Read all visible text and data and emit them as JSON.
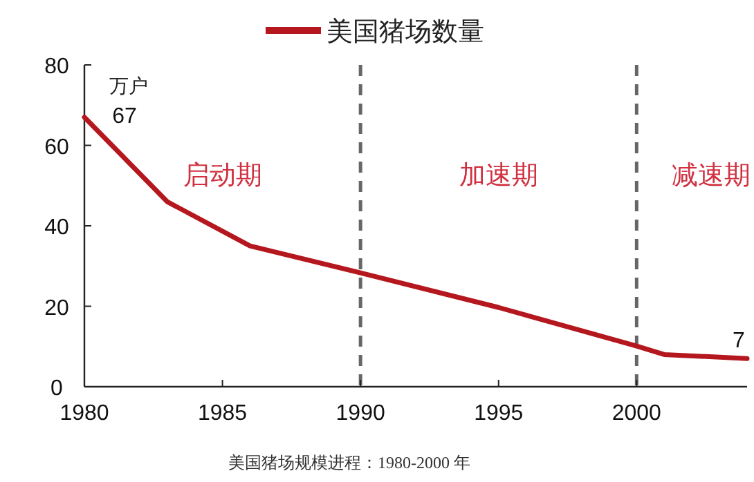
{
  "chart_data": {
    "type": "line",
    "ylabel": "万户",
    "x": [
      1980,
      1983,
      1986,
      1990,
      1995,
      2000,
      2001,
      2004
    ],
    "series": [
      {
        "name": "美国猪场数量",
        "color": "#b5171e",
        "values": [
          67,
          46,
          35,
          28.3,
          19.7,
          10.1,
          8,
          7
        ],
        "value_labels": [
          "67",
          null,
          null,
          null,
          null,
          null,
          null,
          "7"
        ]
      }
    ],
    "xlim": [
      1980,
      2004
    ],
    "xticks": [
      1980,
      1985,
      1990,
      1995,
      2000
    ],
    "ylim": [
      0,
      80
    ],
    "yticks": [
      0,
      20,
      40,
      60,
      80
    ],
    "ref_lines": [
      {
        "axis": "x",
        "value": 1990,
        "color": "#666666",
        "line_style": "dashed"
      },
      {
        "axis": "x",
        "value": 2000,
        "color": "#666666",
        "line_style": "dashed"
      }
    ],
    "annotations": [
      "启动期",
      "加速期",
      "减速期",
      "美国猪场规模进程：1980-2000 年"
    ],
    "grid": false,
    "legend": "top",
    "marker": "none",
    "line_style": "solid"
  }
}
